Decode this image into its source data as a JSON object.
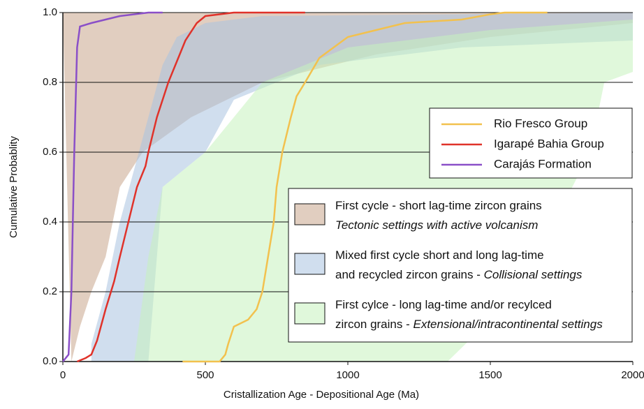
{
  "chart_data": {
    "type": "line",
    "xlabel": "Cristallization Age - Depositional Age (Ma)",
    "ylabel": "Cumulative Probablity",
    "xlim": [
      0,
      2000
    ],
    "xticks": [
      0,
      500,
      1000,
      1500,
      2000
    ],
    "ylim": [
      0,
      1
    ],
    "yticks": [
      {
        "value": 0,
        "label": "0.0"
      },
      0.2,
      0.4,
      0.6,
      0.8,
      {
        "value": 1,
        "label": "1.0"
      }
    ],
    "grid": true,
    "legend": "right",
    "series": [
      {
        "name": "Rio Fresco Group",
        "color": "#f2c14e",
        "x": [
          420,
          550,
          570,
          580,
          600,
          650,
          680,
          700,
          720,
          740,
          750,
          770,
          800,
          820,
          850,
          900,
          950,
          1000,
          1100,
          1200,
          1400,
          1500,
          1550,
          1700
        ],
        "values": [
          0,
          0,
          0.02,
          0.05,
          0.1,
          0.12,
          0.15,
          0.2,
          0.3,
          0.4,
          0.5,
          0.6,
          0.7,
          0.76,
          0.8,
          0.87,
          0.9,
          0.93,
          0.95,
          0.97,
          0.98,
          0.995,
          1,
          1
        ]
      },
      {
        "name": "Igarapé Bahia Group",
        "color": "#e0322a",
        "x": [
          50,
          80,
          100,
          120,
          150,
          180,
          200,
          230,
          260,
          290,
          300,
          330,
          370,
          400,
          430,
          470,
          500,
          600,
          850
        ],
        "values": [
          0,
          0.01,
          0.02,
          0.06,
          0.15,
          0.23,
          0.3,
          0.4,
          0.5,
          0.56,
          0.6,
          0.7,
          0.8,
          0.86,
          0.92,
          0.97,
          0.99,
          1,
          1
        ]
      },
      {
        "name": "Carajás Formation",
        "color": "#8a4fc8",
        "x": [
          0,
          20,
          30,
          40,
          50,
          60,
          100,
          150,
          200,
          300,
          350
        ],
        "values": [
          0,
          0.02,
          0.2,
          0.6,
          0.9,
          0.96,
          0.97,
          0.98,
          0.99,
          1,
          1
        ]
      }
    ],
    "regions": [
      {
        "name_lines": [
          {
            "text": "First cycle - short lag-time zircon grains"
          },
          {
            "italic": "Tectonic settings with active volcanism"
          }
        ],
        "color": "#c9a58c",
        "x_upper": [
          0,
          2000
        ],
        "upper": [
          1,
          1
        ],
        "x_lower": [
          30,
          60,
          100,
          150,
          200,
          280,
          450,
          700,
          1100,
          1500,
          2000
        ],
        "lower": [
          0,
          0.1,
          0.2,
          0.3,
          0.5,
          0.6,
          0.7,
          0.8,
          0.88,
          0.93,
          0.97
        ]
      },
      {
        "name_lines": [
          {
            "text": "Mixed first cycle short and long lag-time"
          },
          {
            "text": "and recycled zircon grains - ",
            "italic": "Collisional settings"
          }
        ],
        "color": "#a9c3e0",
        "x_upper": [
          100,
          150,
          200,
          250,
          300,
          350,
          400,
          500,
          700,
          2000
        ],
        "upper": [
          0.05,
          0.2,
          0.4,
          0.55,
          0.7,
          0.85,
          0.93,
          0.97,
          0.99,
          1
        ],
        "x_lower": [
          100,
          300,
          350,
          500,
          600,
          900,
          1400,
          2000
        ],
        "lower": [
          0,
          0,
          0.5,
          0.6,
          0.75,
          0.85,
          0.9,
          0.92
        ]
      },
      {
        "name_lines": [
          {
            "text": "First cylce - long lag-time and/or recylced"
          },
          {
            "text": "zircon grains - ",
            "italic": "Extensional/intracontinental settings"
          }
        ],
        "color": "#c6f2bd",
        "x_upper": [
          250,
          300,
          350,
          500,
          600,
          700,
          1000,
          1500,
          2000
        ],
        "upper": [
          0,
          0.3,
          0.5,
          0.6,
          0.7,
          0.8,
          0.9,
          0.95,
          0.98
        ],
        "x_lower": [
          1350,
          1600,
          1850,
          1900,
          2000
        ],
        "lower": [
          0,
          0.2,
          0.6,
          0.8,
          0.83
        ]
      }
    ]
  }
}
